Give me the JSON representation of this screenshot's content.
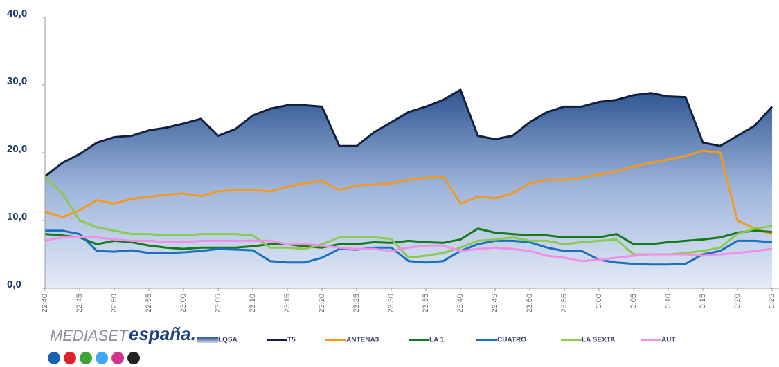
{
  "chart_data": {
    "type": "line",
    "categories": [
      "22:40",
      null,
      "22:45",
      null,
      "22:50",
      null,
      "22:55",
      null,
      "23:00",
      null,
      "23:05",
      null,
      "23:10",
      null,
      "23:15",
      null,
      "23:20",
      null,
      "23:25",
      null,
      "23:30",
      null,
      "23:35",
      null,
      "23:40",
      null,
      "23:45",
      null,
      "23:50",
      null,
      "23:55",
      null,
      "0:00",
      null,
      "0:05",
      null,
      "0:10",
      null,
      "0:15",
      null,
      "0:20",
      null,
      "0:25"
    ],
    "ylim": [
      0,
      40
    ],
    "yticks": [
      {
        "value": 0,
        "label": "0,0"
      },
      {
        "value": 10,
        "label": "10,0"
      },
      {
        "value": 20,
        "label": "20,0"
      },
      {
        "value": 30,
        "label": "30,0"
      },
      {
        "value": 40,
        "label": "40,0"
      }
    ],
    "series": [
      {
        "name": "LQSA",
        "color": "#2d5590",
        "fill": "area",
        "values": [
          16.5,
          18.5,
          19.8,
          21.5,
          22.3,
          22.5,
          23.3,
          23.7,
          24.3,
          25,
          22.5,
          23.5,
          25.5,
          26.5,
          27,
          27,
          26.8,
          21,
          21,
          23,
          24.5,
          26,
          26.8,
          27.8,
          29.3,
          22.5,
          22,
          22.5,
          24.5,
          26,
          26.8,
          26.8,
          27.5,
          27.8,
          28.5,
          28.8,
          28.3,
          28.2,
          21.5,
          21,
          22.5,
          24,
          26.8
        ]
      },
      {
        "name": "T5",
        "color": "#0f1f3d",
        "values": [
          16.5,
          18.5,
          19.8,
          21.5,
          22.3,
          22.5,
          23.3,
          23.7,
          24.3,
          25,
          22.5,
          23.5,
          25.5,
          26.5,
          27,
          27,
          26.8,
          21,
          21,
          23,
          24.5,
          26,
          26.8,
          27.8,
          29.3,
          22.5,
          22,
          22.5,
          24.5,
          26,
          26.8,
          26.8,
          27.5,
          27.8,
          28.5,
          28.8,
          28.3,
          28.2,
          21.5,
          21,
          22.5,
          24,
          26.8
        ]
      },
      {
        "name": "ANTENA3",
        "color": "#f39a1e",
        "values": [
          11.3,
          10.5,
          11.5,
          13,
          12.5,
          13.2,
          13.5,
          13.8,
          14,
          13.6,
          14.3,
          14.5,
          14.5,
          14.3,
          15,
          15.5,
          15.8,
          14.5,
          15.2,
          15.3,
          15.5,
          16,
          16.3,
          16.5,
          12.5,
          13.5,
          13.3,
          14,
          15.5,
          16,
          16,
          16.3,
          16.8,
          17.2,
          18,
          18.5,
          19,
          19.5,
          20.3,
          20,
          10,
          8.8,
          8
        ]
      },
      {
        "name": "LA 1",
        "color": "#157a1a",
        "values": [
          8,
          7.8,
          7.5,
          6.5,
          7,
          6.8,
          6.3,
          6,
          5.8,
          6,
          6,
          6,
          6.2,
          6.5,
          6.5,
          6.2,
          6,
          6.5,
          6.5,
          6.8,
          6.7,
          7,
          6.8,
          6.7,
          7.2,
          8.8,
          8.2,
          8,
          7.8,
          7.8,
          7.5,
          7.5,
          7.5,
          8,
          6.5,
          6.5,
          6.8,
          7,
          7.2,
          7.5,
          8.2,
          8.5,
          8.3
        ]
      },
      {
        "name": "CUATRO",
        "color": "#1a6fc0",
        "values": [
          8.5,
          8.5,
          8,
          5.5,
          5.4,
          5.6,
          5.2,
          5.2,
          5.3,
          5.5,
          5.8,
          5.7,
          5.6,
          4,
          3.8,
          3.8,
          4.5,
          5.8,
          5.7,
          6,
          6,
          4,
          3.8,
          4,
          5.5,
          6.5,
          7,
          7,
          6.8,
          6,
          5.5,
          5.5,
          4.2,
          3.8,
          3.6,
          3.5,
          3.5,
          3.6,
          5,
          5.5,
          7,
          7,
          6.8
        ]
      },
      {
        "name": "LA SEXTA",
        "color": "#8cc94f",
        "values": [
          16.5,
          14,
          10,
          9,
          8.5,
          8,
          8,
          7.8,
          7.8,
          8,
          8,
          8,
          7.8,
          6,
          6,
          5.8,
          6.5,
          7.5,
          7.5,
          7.5,
          7.3,
          4.5,
          4.8,
          5.2,
          6,
          7,
          7.2,
          7.5,
          7,
          7,
          6.5,
          6.8,
          7,
          7.2,
          5,
          5,
          5,
          5.2,
          5.5,
          6,
          8,
          8.8,
          9.2
        ]
      },
      {
        "name": "AUT",
        "color": "#f08ee8",
        "values": [
          7,
          7.5,
          7.5,
          7.5,
          7.2,
          7,
          7,
          6.8,
          6.8,
          7,
          7,
          7,
          7,
          7,
          6.5,
          6.5,
          6.3,
          6,
          5.8,
          5.8,
          5.5,
          6,
          6.3,
          6.3,
          5.5,
          5.8,
          6,
          5.8,
          5.5,
          4.8,
          4.5,
          4,
          4.2,
          4.5,
          4.8,
          5,
          5,
          5,
          4.8,
          5,
          5.2,
          5.5,
          5.8
        ]
      }
    ]
  },
  "logo": {
    "brand": "MEDIASET",
    "country": "españa."
  }
}
